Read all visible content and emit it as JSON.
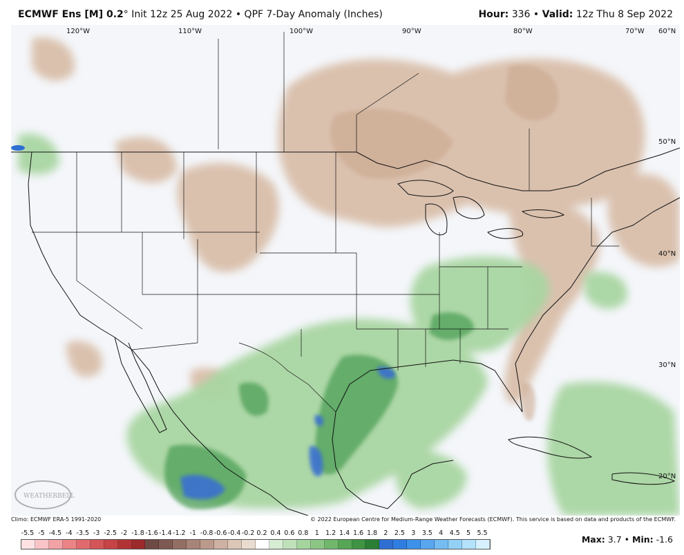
{
  "header": {
    "model": "ECMWF Ens [M] 0.2",
    "degree": "°",
    "init": "Init 12z 25 Aug 2022",
    "sep": "•",
    "product": "QPF 7-Day Anomaly (Inches)",
    "hour_label": "Hour:",
    "hour_value": "336",
    "valid_label": "Valid:",
    "valid_value": "12z Thu 8 Sep 2022"
  },
  "map": {
    "longitude_labels": [
      "120°W",
      "110°W",
      "100°W",
      "90°W",
      "80°W",
      "70°W",
      "60°N"
    ],
    "latitude_labels": [
      "50°N",
      "40°N",
      "30°N",
      "20°N"
    ],
    "watermark": "WEATHERBELL"
  },
  "footer": {
    "climo": "Climo: ECMWF ERA-5 1991-2020",
    "copyright": "© 2022 European Centre for Medium-Range Weather Forecasts (ECMWF). This service is based on data and products of the ECMWF."
  },
  "legend": {
    "labels": [
      "-5.5",
      "-5",
      "-4.5",
      "-4",
      "-3.5",
      "-3",
      "-2.5",
      "-2",
      "-1.8",
      "-1.6",
      "-1.4",
      "-1.2",
      "-1",
      "-0.8",
      "-0.6",
      "-0.4",
      "-0.2",
      "0.2",
      "0.4",
      "0.6",
      "0.8",
      "1",
      "1.2",
      "1.4",
      "1.6",
      "1.8",
      "2",
      "2.5",
      "3",
      "3.5",
      "4",
      "4.5",
      "5",
      "5.5"
    ],
    "colors": [
      "#fde2e4",
      "#f9c4c7",
      "#f3a2a6",
      "#ec8386",
      "#e06a6e",
      "#d45558",
      "#c64346",
      "#b23336",
      "#9b2a2b",
      "#6e4a44",
      "#7f5a52",
      "#936e64",
      "#a88478",
      "#bb9a8c",
      "#cdb1a2",
      "#dcc6b7",
      "#e9dbcf",
      "#ffffff",
      "#d6ecd3",
      "#bfe1ba",
      "#a5d49f",
      "#8bc685",
      "#70b76c",
      "#56a655",
      "#3f9443",
      "#2b7f35",
      "#2f6fd3",
      "#2f7de0",
      "#3e91e8",
      "#58a6ee",
      "#74bcf2",
      "#93d0f6",
      "#b3e2fa",
      "#d6f1fd"
    ]
  },
  "stats": {
    "max_label": "Max:",
    "max_value": "3.7",
    "min_label": "Min:",
    "min_value": "-1.6",
    "sep": "•"
  }
}
